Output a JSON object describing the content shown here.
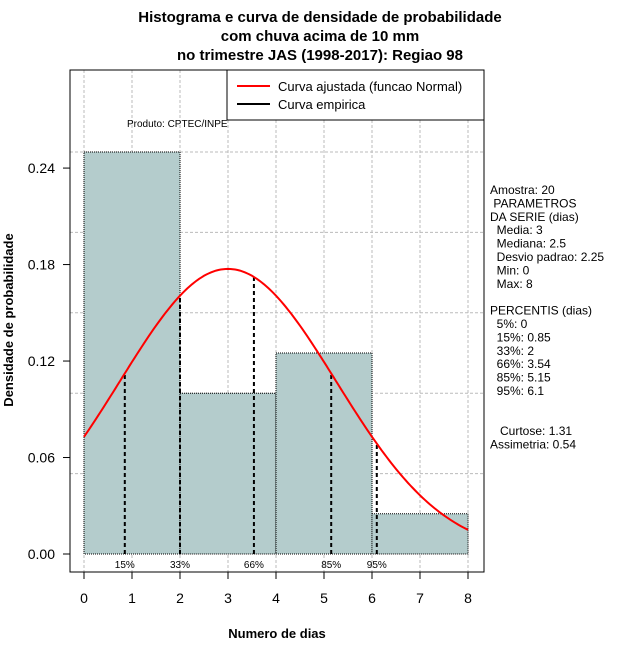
{
  "chart_data": {
    "type": "bar",
    "title": [
      "Histograma e curva de densidade de probabilidade",
      "com chuva acima de 10 mm",
      "no trimestre JAS (1998-2017): Regiao 98"
    ],
    "xlabel": "Numero de dias",
    "ylabel": "Densidade de probabilidade",
    "xlim": [
      0,
      8
    ],
    "ylim": [
      0,
      0.24
    ],
    "xticks": [
      "0",
      "1",
      "2",
      "3",
      "4",
      "5",
      "6",
      "7",
      "8"
    ],
    "yticks": [
      "0.00",
      "0.06",
      "0.12",
      "0.18",
      "0.24"
    ],
    "grid": true,
    "bins": [
      {
        "from": 0,
        "to": 2,
        "density": 0.25
      },
      {
        "from": 2,
        "to": 4,
        "density": 0.1
      },
      {
        "from": 4,
        "to": 6,
        "density": 0.125
      },
      {
        "from": 6,
        "to": 8,
        "density": 0.025
      }
    ],
    "normal_fit": {
      "mean": 3,
      "sd": 2.25
    },
    "percentile_marks": [
      {
        "label": "15%",
        "x": 0.85
      },
      {
        "label": "33%",
        "x": 2
      },
      {
        "label": "66%",
        "x": 3.54
      },
      {
        "label": "85%",
        "x": 5.15
      },
      {
        "label": "95%",
        "x": 6.1
      }
    ],
    "legend": {
      "placement": "top-right",
      "entries": [
        {
          "label": "Curva ajustada (funcao Normal)",
          "color": "#ff0000"
        },
        {
          "label": "Curva empirica",
          "color": "#000000"
        }
      ]
    },
    "credit": "Produto: CPTEC/INPE",
    "bar_color": "#b4cccc",
    "stats": [
      "Amostra: 20",
      " PARAMETROS",
      "DA SERIE (dias)",
      "  Media: 3",
      "  Mediana: 2.5",
      "  Desvio padrao: 2.25",
      "  Min: 0",
      "  Max: 8",
      "",
      "PERCENTIS (dias)",
      "  5%: 0",
      "  15%: 0.85",
      "  33%: 2",
      "  66%: 3.54",
      "  85%: 5.15",
      "  95%: 6.1",
      "",
      "",
      "   Curtose: 1.31",
      "Assimetria: 0.54"
    ]
  }
}
